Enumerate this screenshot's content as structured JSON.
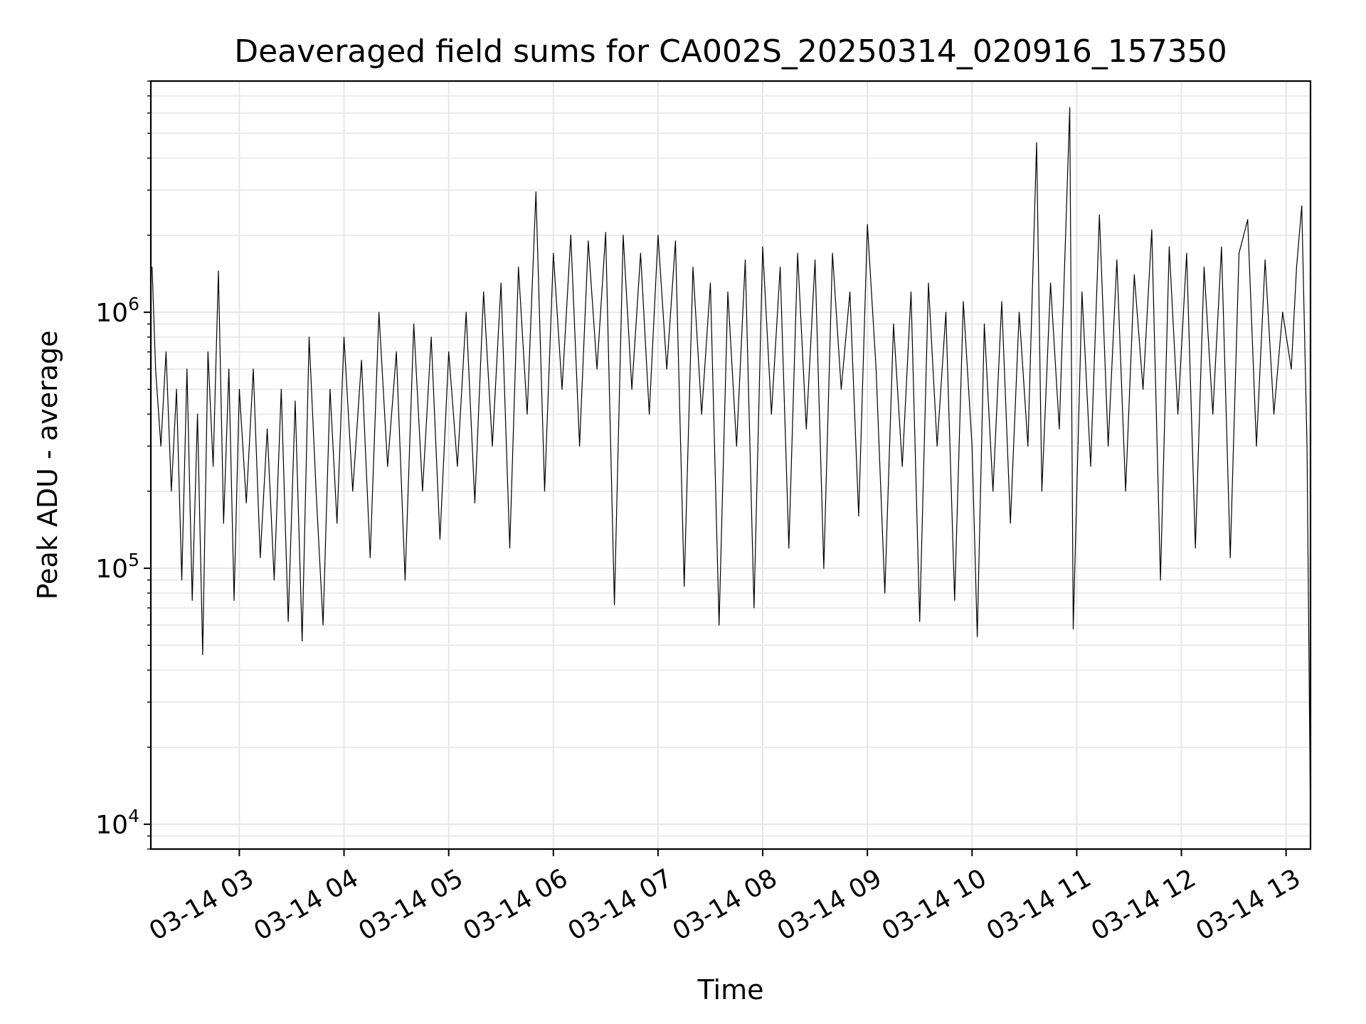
{
  "chart_data": {
    "type": "line",
    "title": "Deaveraged field sums for CA002S_20250314_020916_157350",
    "xlabel": "Time",
    "ylabel": "Peak ADU - average",
    "yscale": "log",
    "ylim": [
      8000,
      8000000
    ],
    "xlim": [
      "2025-03-14 02:09:16",
      "2025-03-14 13:14:00"
    ],
    "x_ticks": [
      "03-14 03",
      "03-14 04",
      "03-14 05",
      "03-14 06",
      "03-14 07",
      "03-14 08",
      "03-14 09",
      "03-14 10",
      "03-14 11",
      "03-14 12",
      "03-14 13"
    ],
    "y_ticks": [
      {
        "base": "10",
        "exp": "4",
        "value": 10000
      },
      {
        "base": "10",
        "exp": "5",
        "value": 100000
      },
      {
        "base": "10",
        "exp": "6",
        "value": 1000000
      }
    ],
    "grid": true,
    "grid_minor": true,
    "series": [
      {
        "color": "#000000",
        "points": [
          [
            "2025-03-14 02:10",
            1500000
          ],
          [
            "2025-03-14 02:12",
            600000
          ],
          [
            "2025-03-14 02:15",
            300000
          ],
          [
            "2025-03-14 02:18",
            700000
          ],
          [
            "2025-03-14 02:21",
            200000
          ],
          [
            "2025-03-14 02:24",
            500000
          ],
          [
            "2025-03-14 02:27",
            90000
          ],
          [
            "2025-03-14 02:30",
            600000
          ],
          [
            "2025-03-14 02:33",
            75000
          ],
          [
            "2025-03-14 02:36",
            400000
          ],
          [
            "2025-03-14 02:39",
            46000
          ],
          [
            "2025-03-14 02:42",
            700000
          ],
          [
            "2025-03-14 02:45",
            250000
          ],
          [
            "2025-03-14 02:48",
            1450000
          ],
          [
            "2025-03-14 02:51",
            150000
          ],
          [
            "2025-03-14 02:54",
            600000
          ],
          [
            "2025-03-14 02:57",
            75000
          ],
          [
            "2025-03-14 03:00",
            500000
          ],
          [
            "2025-03-14 03:04",
            180000
          ],
          [
            "2025-03-14 03:08",
            600000
          ],
          [
            "2025-03-14 03:12",
            110000
          ],
          [
            "2025-03-14 03:16",
            350000
          ],
          [
            "2025-03-14 03:20",
            90000
          ],
          [
            "2025-03-14 03:24",
            500000
          ],
          [
            "2025-03-14 03:28",
            62000
          ],
          [
            "2025-03-14 03:32",
            450000
          ],
          [
            "2025-03-14 03:36",
            52000
          ],
          [
            "2025-03-14 03:40",
            800000
          ],
          [
            "2025-03-14 03:44",
            200000
          ],
          [
            "2025-03-14 03:48",
            60000
          ],
          [
            "2025-03-14 03:52",
            500000
          ],
          [
            "2025-03-14 03:56",
            150000
          ],
          [
            "2025-03-14 04:00",
            800000
          ],
          [
            "2025-03-14 04:05",
            200000
          ],
          [
            "2025-03-14 04:10",
            650000
          ],
          [
            "2025-03-14 04:15",
            110000
          ],
          [
            "2025-03-14 04:20",
            1000000
          ],
          [
            "2025-03-14 04:25",
            250000
          ],
          [
            "2025-03-14 04:30",
            700000
          ],
          [
            "2025-03-14 04:35",
            90000
          ],
          [
            "2025-03-14 04:40",
            900000
          ],
          [
            "2025-03-14 04:45",
            200000
          ],
          [
            "2025-03-14 04:50",
            800000
          ],
          [
            "2025-03-14 04:55",
            130000
          ],
          [
            "2025-03-14 05:00",
            700000
          ],
          [
            "2025-03-14 05:05",
            250000
          ],
          [
            "2025-03-14 05:10",
            1000000
          ],
          [
            "2025-03-14 05:15",
            180000
          ],
          [
            "2025-03-14 05:20",
            1200000
          ],
          [
            "2025-03-14 05:25",
            300000
          ],
          [
            "2025-03-14 05:30",
            1300000
          ],
          [
            "2025-03-14 05:35",
            120000
          ],
          [
            "2025-03-14 05:40",
            1500000
          ],
          [
            "2025-03-14 05:45",
            400000
          ],
          [
            "2025-03-14 05:50",
            2950000
          ],
          [
            "2025-03-14 05:55",
            200000
          ],
          [
            "2025-03-14 06:00",
            1700000
          ],
          [
            "2025-03-14 06:05",
            500000
          ],
          [
            "2025-03-14 06:10",
            2000000
          ],
          [
            "2025-03-14 06:15",
            300000
          ],
          [
            "2025-03-14 06:20",
            1900000
          ],
          [
            "2025-03-14 06:25",
            600000
          ],
          [
            "2025-03-14 06:30",
            2050000
          ],
          [
            "2025-03-14 06:35",
            72000
          ],
          [
            "2025-03-14 06:40",
            2000000
          ],
          [
            "2025-03-14 06:45",
            500000
          ],
          [
            "2025-03-14 06:50",
            1700000
          ],
          [
            "2025-03-14 06:55",
            400000
          ],
          [
            "2025-03-14 07:00",
            2000000
          ],
          [
            "2025-03-14 07:05",
            600000
          ],
          [
            "2025-03-14 07:10",
            1900000
          ],
          [
            "2025-03-14 07:15",
            85000
          ],
          [
            "2025-03-14 07:20",
            1500000
          ],
          [
            "2025-03-14 07:25",
            400000
          ],
          [
            "2025-03-14 07:30",
            1300000
          ],
          [
            "2025-03-14 07:35",
            60000
          ],
          [
            "2025-03-14 07:40",
            1200000
          ],
          [
            "2025-03-14 07:45",
            300000
          ],
          [
            "2025-03-14 07:50",
            1600000
          ],
          [
            "2025-03-14 07:55",
            70000
          ],
          [
            "2025-03-14 08:00",
            1800000
          ],
          [
            "2025-03-14 08:05",
            400000
          ],
          [
            "2025-03-14 08:10",
            1500000
          ],
          [
            "2025-03-14 08:15",
            120000
          ],
          [
            "2025-03-14 08:20",
            1700000
          ],
          [
            "2025-03-14 08:25",
            350000
          ],
          [
            "2025-03-14 08:30",
            1600000
          ],
          [
            "2025-03-14 08:35",
            100000
          ],
          [
            "2025-03-14 08:40",
            1700000
          ],
          [
            "2025-03-14 08:45",
            500000
          ],
          [
            "2025-03-14 08:50",
            1200000
          ],
          [
            "2025-03-14 08:55",
            160000
          ],
          [
            "2025-03-14 09:00",
            2200000
          ],
          [
            "2025-03-14 09:05",
            600000
          ],
          [
            "2025-03-14 09:10",
            80000
          ],
          [
            "2025-03-14 09:15",
            900000
          ],
          [
            "2025-03-14 09:20",
            250000
          ],
          [
            "2025-03-14 09:25",
            1200000
          ],
          [
            "2025-03-14 09:30",
            62000
          ],
          [
            "2025-03-14 09:35",
            1300000
          ],
          [
            "2025-03-14 09:40",
            300000
          ],
          [
            "2025-03-14 09:45",
            1000000
          ],
          [
            "2025-03-14 09:50",
            75000
          ],
          [
            "2025-03-14 09:55",
            1100000
          ],
          [
            "2025-03-14 10:00",
            300000
          ],
          [
            "2025-03-14 10:03",
            54000
          ],
          [
            "2025-03-14 10:07",
            900000
          ],
          [
            "2025-03-14 10:12",
            200000
          ],
          [
            "2025-03-14 10:17",
            1100000
          ],
          [
            "2025-03-14 10:22",
            150000
          ],
          [
            "2025-03-14 10:27",
            1000000
          ],
          [
            "2025-03-14 10:32",
            300000
          ],
          [
            "2025-03-14 10:37",
            4600000
          ],
          [
            "2025-03-14 10:40",
            200000
          ],
          [
            "2025-03-14 10:45",
            1300000
          ],
          [
            "2025-03-14 10:50",
            350000
          ],
          [
            "2025-03-14 10:56",
            6300000
          ],
          [
            "2025-03-14 10:58",
            58000
          ],
          [
            "2025-03-14 11:03",
            1200000
          ],
          [
            "2025-03-14 11:08",
            250000
          ],
          [
            "2025-03-14 11:13",
            2400000
          ],
          [
            "2025-03-14 11:18",
            300000
          ],
          [
            "2025-03-14 11:23",
            1600000
          ],
          [
            "2025-03-14 11:28",
            200000
          ],
          [
            "2025-03-14 11:33",
            1400000
          ],
          [
            "2025-03-14 11:38",
            500000
          ],
          [
            "2025-03-14 11:43",
            2100000
          ],
          [
            "2025-03-14 11:48",
            90000
          ],
          [
            "2025-03-14 11:53",
            1800000
          ],
          [
            "2025-03-14 11:58",
            400000
          ],
          [
            "2025-03-14 12:03",
            1700000
          ],
          [
            "2025-03-14 12:08",
            120000
          ],
          [
            "2025-03-14 12:13",
            1500000
          ],
          [
            "2025-03-14 12:18",
            400000
          ],
          [
            "2025-03-14 12:23",
            1800000
          ],
          [
            "2025-03-14 12:28",
            110000
          ],
          [
            "2025-03-14 12:33",
            1700000
          ],
          [
            "2025-03-14 12:38",
            2300000
          ],
          [
            "2025-03-14 12:43",
            300000
          ],
          [
            "2025-03-14 12:48",
            1600000
          ],
          [
            "2025-03-14 12:53",
            400000
          ],
          [
            "2025-03-14 12:58",
            1000000
          ],
          [
            "2025-03-14 13:03",
            600000
          ],
          [
            "2025-03-14 13:06",
            1500000
          ],
          [
            "2025-03-14 13:09",
            2600000
          ],
          [
            "2025-03-14 13:12",
            300000
          ],
          [
            "2025-03-14 13:14",
            10000
          ]
        ]
      }
    ]
  }
}
